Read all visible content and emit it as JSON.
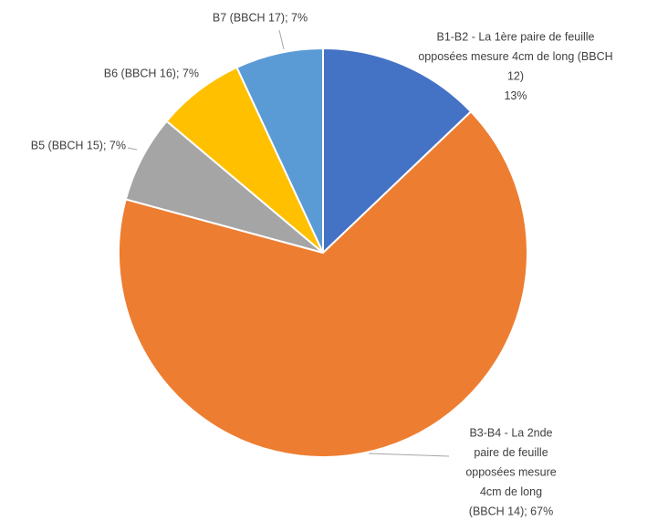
{
  "chart_data": {
    "type": "pie",
    "labels": [
      [
        "B1-B2 -  La 1ère paire de feuille",
        "opposées mesure 4cm de long (BBCH",
        "12)",
        "13%"
      ],
      [
        "B3-B4 - La 2nde",
        "paire de feuille",
        "opposées mesure",
        "4cm de long",
        "(BBCH 14); 67%"
      ],
      [
        "B5 (BBCH 15); 7%"
      ],
      [
        "B6 (BBCH 16); 7%"
      ],
      [
        "B7 (BBCH 17); 7%"
      ]
    ],
    "values": [
      13,
      67,
      7,
      7,
      7
    ],
    "colors": [
      "#4472c4",
      "#ed7d31",
      "#a5a5a5",
      "#ffc000",
      "#5b9bd5"
    ]
  }
}
